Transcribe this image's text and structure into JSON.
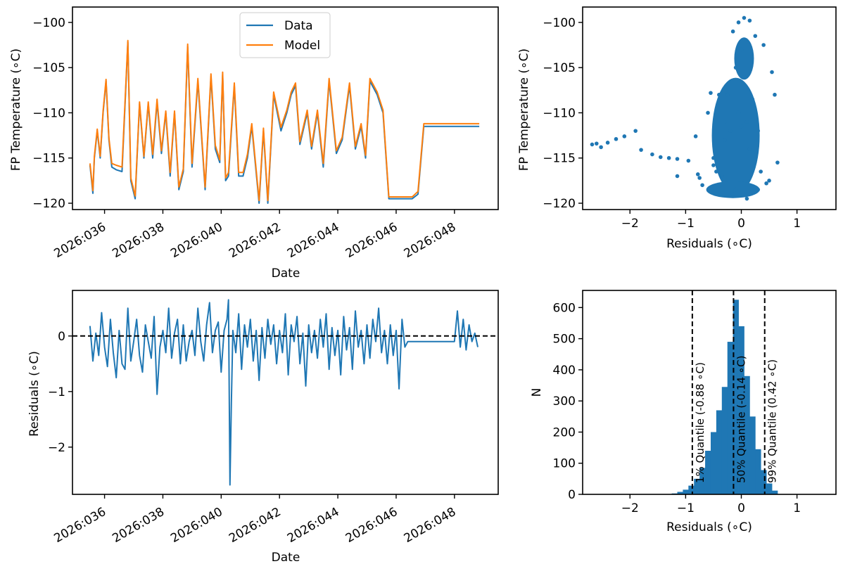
{
  "chart_data": [
    {
      "id": "timeseries",
      "type": "line",
      "xlabel": "Date",
      "ylabel": "FP Temperature (∘C)",
      "xlim": [
        34.9,
        49.5
      ],
      "ylim": [
        -120.7,
        -98.3
      ],
      "yticks": [
        -100,
        -105,
        -110,
        -115,
        -120
      ],
      "xticks": [
        {
          "value": 36,
          "label": "2026:036"
        },
        {
          "value": 38,
          "label": "2026:038"
        },
        {
          "value": 40,
          "label": "2026:040"
        },
        {
          "value": 42,
          "label": "2026:042"
        },
        {
          "value": 44,
          "label": "2026:044"
        },
        {
          "value": 46,
          "label": "2026:046"
        },
        {
          "value": 48,
          "label": "2026:048"
        }
      ],
      "legend_position": "top-center",
      "series": [
        {
          "name": "Data",
          "color": "#1f77b4",
          "x": [
            35.5,
            35.6,
            35.65,
            35.75,
            35.85,
            35.95,
            36.05,
            36.15,
            36.25,
            36.4,
            36.6,
            36.8,
            36.9,
            37.05,
            37.2,
            37.35,
            37.5,
            37.65,
            37.8,
            37.95,
            38.1,
            38.25,
            38.4,
            38.55,
            38.7,
            38.85,
            39.0,
            39.2,
            39.45,
            39.65,
            39.8,
            39.95,
            40.05,
            40.15,
            40.25,
            40.45,
            40.6,
            40.75,
            40.9,
            41.05,
            41.3,
            41.45,
            41.6,
            41.8,
            42.05,
            42.25,
            42.4,
            42.55,
            42.7,
            42.95,
            43.1,
            43.3,
            43.5,
            43.7,
            43.95,
            44.15,
            44.4,
            44.6,
            44.8,
            44.95,
            45.1,
            45.35,
            45.55,
            45.75,
            45.95,
            46.15,
            46.35,
            46.55,
            46.75,
            46.95,
            47.1,
            47.2,
            47.4,
            47.55,
            47.75,
            48.0,
            48.3,
            48.65,
            48.75,
            48.85
          ],
          "y": [
            -115.8,
            -118.9,
            -115.0,
            -112.0,
            -115.0,
            -110.0,
            -106.5,
            -113.0,
            -116.0,
            -116.3,
            -116.5,
            -102.2,
            -117.5,
            -119.5,
            -109.0,
            -115.0,
            -109.0,
            -115.0,
            -108.8,
            -114.5,
            -110.0,
            -117.0,
            -110.0,
            -118.5,
            -116.5,
            -102.7,
            -116.0,
            -106.5,
            -118.5,
            -106.0,
            -114.0,
            -115.5,
            -105.8,
            -117.5,
            -117.0,
            -107.0,
            -117.0,
            -117.0,
            -115.0,
            -111.5,
            -120.0,
            -112.0,
            -120.0,
            -108.0,
            -112.0,
            -110.0,
            -108.0,
            -107.0,
            -113.5,
            -110.0,
            -114.0,
            -110.0,
            -116.0,
            -106.5,
            -114.5,
            -113.0,
            -107.0,
            -114.0,
            -111.5,
            -115.0,
            -106.5,
            -108.0,
            -110.0,
            -119.5,
            -119.5,
            -119.5,
            -119.5,
            -119.5,
            -119.0,
            -111.5,
            -111.5,
            -111.5,
            -111.5,
            -111.5,
            -111.5,
            -111.5,
            -111.5,
            -111.5,
            -111.5,
            -111.5
          ]
        },
        {
          "name": "Model",
          "color": "#ff7f0e",
          "x": [
            35.5,
            35.6,
            35.65,
            35.75,
            35.85,
            35.95,
            36.05,
            36.15,
            36.25,
            36.4,
            36.6,
            36.8,
            36.9,
            37.05,
            37.2,
            37.35,
            37.5,
            37.65,
            37.8,
            37.95,
            38.1,
            38.25,
            38.4,
            38.55,
            38.7,
            38.85,
            39.0,
            39.2,
            39.45,
            39.65,
            39.8,
            39.95,
            40.05,
            40.15,
            40.25,
            40.45,
            40.6,
            40.75,
            40.9,
            41.05,
            41.3,
            41.45,
            41.6,
            41.8,
            42.05,
            42.25,
            42.4,
            42.55,
            42.7,
            42.95,
            43.1,
            43.3,
            43.5,
            43.7,
            43.95,
            44.15,
            44.4,
            44.6,
            44.8,
            44.95,
            45.1,
            45.35,
            45.55,
            45.75,
            45.95,
            46.15,
            46.35,
            46.55,
            46.75,
            46.95,
            47.1,
            47.2,
            47.4,
            47.55,
            47.75,
            48.0,
            48.3,
            48.65,
            48.75,
            48.85
          ],
          "y": [
            -115.6,
            -118.6,
            -114.8,
            -111.8,
            -114.8,
            -109.8,
            -106.3,
            -112.8,
            -115.6,
            -115.8,
            -116.0,
            -102.0,
            -117.2,
            -119.2,
            -108.8,
            -114.8,
            -108.8,
            -114.6,
            -108.5,
            -114.2,
            -109.8,
            -116.6,
            -109.8,
            -118.2,
            -116.2,
            -102.4,
            -115.6,
            -106.2,
            -118.2,
            -105.7,
            -113.6,
            -115.2,
            -105.5,
            -117.2,
            -116.6,
            -106.7,
            -116.6,
            -116.6,
            -114.6,
            -111.2,
            -119.7,
            -111.7,
            -119.7,
            -107.7,
            -111.6,
            -109.7,
            -107.7,
            -106.7,
            -113.2,
            -109.7,
            -113.7,
            -109.7,
            -115.6,
            -106.2,
            -114.2,
            -112.7,
            -106.7,
            -113.7,
            -111.2,
            -114.7,
            -106.2,
            -107.7,
            -109.7,
            -119.3,
            -119.3,
            -119.3,
            -119.3,
            -119.3,
            -118.7,
            -111.2,
            -111.2,
            -111.2,
            -111.2,
            -111.2,
            -111.2,
            -111.2,
            -111.2,
            -111.2,
            -111.2,
            -111.2
          ]
        }
      ]
    },
    {
      "id": "scatter",
      "type": "scatter",
      "xlabel": "Residuals (∘C)",
      "ylabel": "FP Temperature (∘C)",
      "xlim": [
        -2.85,
        1.7
      ],
      "ylim": [
        -120.7,
        -98.3
      ],
      "xticks": [
        -2,
        -1,
        0,
        1
      ],
      "yticks": [
        -100,
        -105,
        -110,
        -115,
        -120
      ],
      "series": [
        {
          "name": "Residuals vs temperature",
          "color": "#1f77b4",
          "x": [
            -2.68,
            -2.6,
            -2.52,
            -2.4,
            -2.25,
            -2.1,
            -1.9,
            -1.8,
            -1.6,
            -1.45,
            -1.3,
            -1.15,
            -0.95,
            -1.15,
            -0.78,
            -0.82,
            -0.55,
            -0.4,
            -0.6,
            -0.3,
            -0.75,
            -0.2,
            -0.5,
            -0.1,
            0.1,
            -0.35,
            0.2,
            0.35,
            0.5,
            -0.05,
            0.05,
            0.15,
            -0.15,
            0.25,
            0.4,
            0.55,
            -0.25,
            -0.05,
            0.1,
            0.6,
            0.65,
            0.3,
            -0.45,
            -0.7,
            0.2,
            -0.1,
            0.0,
            0.05,
            0.2,
            -0.15,
            0.1,
            0.3,
            0.45,
            -0.5,
            -0.3,
            0.0,
            0.15
          ],
          "y": [
            -113.5,
            -113.4,
            -113.8,
            -113.3,
            -112.9,
            -112.6,
            -112.0,
            -114.1,
            -114.6,
            -114.9,
            -115.0,
            -115.1,
            -115.3,
            -117.0,
            -116.8,
            -112.6,
            -107.8,
            -108.0,
            -110.0,
            -111.0,
            -117.2,
            -112.0,
            -115.8,
            -118.5,
            -118.8,
            -117.0,
            -114.5,
            -116.5,
            -117.5,
            -100.0,
            -99.5,
            -99.8,
            -101.0,
            -101.5,
            -102.5,
            -105.5,
            -108.0,
            -110.0,
            -111.0,
            -108.0,
            -115.5,
            -112.0,
            -116.5,
            -118.0,
            -109.0,
            -105.0,
            -103.0,
            -106.0,
            -108.5,
            -119.0,
            -119.5,
            -118.5,
            -117.8,
            -115.0,
            -113.0,
            -111.5,
            -114.0
          ]
        }
      ]
    },
    {
      "id": "residuals",
      "type": "line",
      "xlabel": "Date",
      "ylabel": "Residuals (∘C)",
      "xlim": [
        34.9,
        49.5
      ],
      "ylim": [
        -2.85,
        0.82
      ],
      "yticks": [
        0,
        -1,
        -2
      ],
      "xticks": [
        {
          "value": 36,
          "label": "2026:036"
        },
        {
          "value": 38,
          "label": "2026:038"
        },
        {
          "value": 40,
          "label": "2026:040"
        },
        {
          "value": 42,
          "label": "2026:042"
        },
        {
          "value": 44,
          "label": "2026:044"
        },
        {
          "value": 46,
          "label": "2026:046"
        },
        {
          "value": 48,
          "label": "2026:048"
        }
      ],
      "reference_line": {
        "y": 0,
        "style": "dashed"
      },
      "series": [
        {
          "name": "Residuals",
          "color": "#1f77b4",
          "x": [
            35.5,
            35.6,
            35.7,
            35.8,
            35.9,
            36.0,
            36.1,
            36.2,
            36.3,
            36.4,
            36.5,
            36.6,
            36.7,
            36.8,
            36.9,
            37.0,
            37.1,
            37.2,
            37.3,
            37.4,
            37.5,
            37.6,
            37.7,
            37.8,
            37.9,
            38.0,
            38.1,
            38.2,
            38.3,
            38.4,
            38.5,
            38.6,
            38.7,
            38.8,
            38.9,
            39.0,
            39.1,
            39.2,
            39.3,
            39.4,
            39.5,
            39.6,
            39.7,
            39.8,
            39.9,
            40.0,
            40.1,
            40.2,
            40.25,
            40.3,
            40.35,
            40.4,
            40.5,
            40.6,
            40.7,
            40.8,
            40.9,
            41.0,
            41.1,
            41.2,
            41.3,
            41.4,
            41.5,
            41.6,
            41.7,
            41.8,
            41.9,
            42.0,
            42.1,
            42.2,
            42.3,
            42.4,
            42.5,
            42.6,
            42.7,
            42.8,
            42.9,
            43.0,
            43.1,
            43.2,
            43.3,
            43.4,
            43.5,
            43.6,
            43.7,
            43.8,
            43.9,
            44.0,
            44.1,
            44.2,
            44.3,
            44.4,
            44.5,
            44.6,
            44.7,
            44.8,
            44.9,
            45.0,
            45.1,
            45.2,
            45.3,
            45.4,
            45.5,
            45.6,
            45.7,
            45.8,
            45.9,
            46.0,
            46.1,
            46.2,
            46.3,
            46.4,
            46.5,
            46.6,
            46.7,
            46.8,
            46.9,
            47.0,
            47.1,
            47.2,
            47.3,
            47.4,
            47.5,
            47.6,
            47.7,
            47.8,
            47.9,
            48.0,
            48.1,
            48.2,
            48.3,
            48.4,
            48.5,
            48.6,
            48.7,
            48.8
          ],
          "y": [
            0.18,
            -0.45,
            0.05,
            -0.35,
            0.42,
            -0.2,
            -0.55,
            0.3,
            -0.3,
            -0.75,
            0.1,
            -0.5,
            -0.6,
            0.5,
            -0.45,
            -0.1,
            0.3,
            -0.35,
            -0.65,
            0.2,
            -0.1,
            -0.4,
            0.35,
            -1.05,
            -0.2,
            0.1,
            -0.3,
            0.5,
            -0.4,
            0.05,
            0.3,
            -0.5,
            0.2,
            -0.45,
            -0.1,
            0.1,
            -0.35,
            0.5,
            -0.1,
            -0.45,
            0.2,
            0.6,
            -0.3,
            0.1,
            0.25,
            -0.65,
            0.1,
            0.3,
            0.65,
            -2.68,
            -1.2,
            0.1,
            -0.3,
            0.4,
            -0.6,
            0.2,
            -0.2,
            0.3,
            -0.45,
            0.1,
            -0.8,
            0.15,
            -0.4,
            0.3,
            -0.15,
            0.2,
            -0.5,
            0.1,
            -0.3,
            0.4,
            -0.7,
            0.2,
            -0.1,
            0.35,
            -0.5,
            0.05,
            -0.9,
            0.2,
            -0.3,
            0.1,
            -0.4,
            0.3,
            -0.2,
            0.4,
            -0.6,
            0.15,
            -0.35,
            0.1,
            -0.7,
            0.35,
            -0.25,
            0.15,
            -0.6,
            0.45,
            -0.2,
            0.1,
            -0.5,
            0.2,
            -0.4,
            0.3,
            -0.1,
            0.5,
            -0.3,
            0.1,
            -0.5,
            0.2,
            -0.35,
            0.1,
            -0.95,
            0.3,
            -0.2,
            -0.1,
            -0.1,
            -0.1,
            -0.1,
            -0.1,
            -0.1,
            -0.1,
            -0.1,
            -0.1,
            -0.1,
            -0.1,
            -0.1,
            -0.1,
            -0.1,
            -0.1,
            -0.1,
            -0.1,
            0.45,
            -0.2,
            0.3,
            -0.25,
            0.2,
            -0.1,
            0.05,
            -0.2
          ]
        }
      ]
    },
    {
      "id": "histogram",
      "type": "bar",
      "xlabel": "Residuals (∘C)",
      "ylabel": "N",
      "xlim": [
        -2.85,
        1.7
      ],
      "ylim": [
        0,
        655
      ],
      "xticks": [
        -2,
        -1,
        0,
        1
      ],
      "yticks": [
        0,
        100,
        200,
        300,
        400,
        500,
        600
      ],
      "bin_width": 0.1,
      "bins": [
        {
          "left": -1.25,
          "count": 3
        },
        {
          "left": -1.15,
          "count": 8
        },
        {
          "left": -1.05,
          "count": 15
        },
        {
          "left": -0.95,
          "count": 28
        },
        {
          "left": -0.85,
          "count": 50
        },
        {
          "left": -0.75,
          "count": 85
        },
        {
          "left": -0.65,
          "count": 140
        },
        {
          "left": -0.55,
          "count": 200
        },
        {
          "left": -0.45,
          "count": 270
        },
        {
          "left": -0.35,
          "count": 345
        },
        {
          "left": -0.25,
          "count": 490
        },
        {
          "left": -0.15,
          "count": 625
        },
        {
          "left": -0.05,
          "count": 540
        },
        {
          "left": 0.05,
          "count": 380
        },
        {
          "left": 0.15,
          "count": 250
        },
        {
          "left": 0.25,
          "count": 145
        },
        {
          "left": 0.35,
          "count": 78
        },
        {
          "left": 0.45,
          "count": 35
        },
        {
          "left": 0.55,
          "count": 12
        }
      ],
      "quantiles": [
        {
          "value": -0.88,
          "label": "1% Quantile (-0.88 ∘C)"
        },
        {
          "value": -0.14,
          "label": "50% Quantile (-0.14 ∘C)"
        },
        {
          "value": 0.42,
          "label": "99% Quantile (0.42 ∘C)"
        }
      ]
    }
  ]
}
